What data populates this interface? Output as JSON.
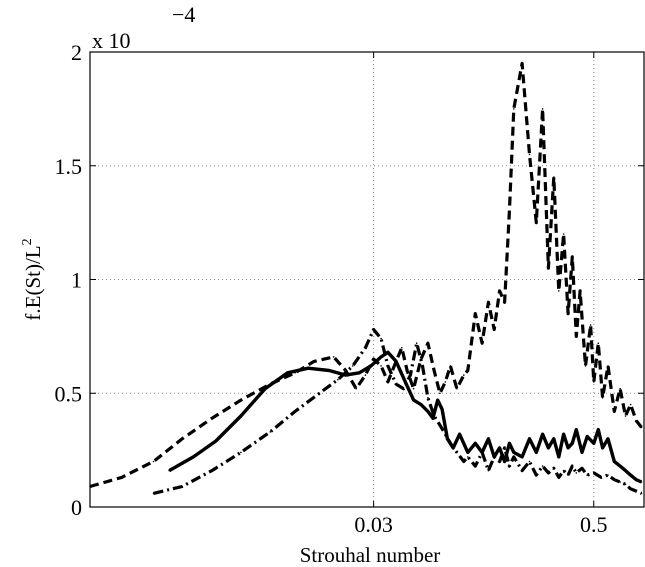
{
  "chart_data": {
    "type": "line",
    "xlabel": "Strouhal number",
    "ylabel_main": "f.E(St)/L",
    "ylabel_sup": "2",
    "y_multiplier_prefix": "x 10",
    "y_multiplier_exp": "−4",
    "xscale": "log",
    "xlim": [
      0.0008,
      0.95
    ],
    "ylim": [
      0,
      2
    ],
    "grid": true,
    "xticks": [
      {
        "value": 0.03,
        "label": "0.03"
      },
      {
        "value": 0.5,
        "label": "0.5"
      }
    ],
    "yticks": [
      {
        "value": 0,
        "label": "0"
      },
      {
        "value": 0.5,
        "label": "0.5"
      },
      {
        "value": 1,
        "label": "1"
      },
      {
        "value": 1.5,
        "label": "1.5"
      },
      {
        "value": 2,
        "label": "2"
      }
    ],
    "series": [
      {
        "style": "solid",
        "color": "#000000",
        "x": [
          0.0022,
          0.003,
          0.004,
          0.0055,
          0.0075,
          0.01,
          0.013,
          0.017,
          0.021,
          0.025,
          0.029,
          0.033,
          0.036,
          0.04,
          0.045,
          0.05,
          0.055,
          0.06,
          0.064,
          0.068,
          0.072,
          0.077,
          0.083,
          0.09,
          0.1,
          0.11,
          0.12,
          0.13,
          0.14,
          0.15,
          0.16,
          0.17,
          0.18,
          0.2,
          0.22,
          0.24,
          0.26,
          0.28,
          0.3,
          0.32,
          0.34,
          0.36,
          0.38,
          0.4,
          0.43,
          0.46,
          0.5,
          0.53,
          0.56,
          0.6,
          0.65,
          0.7,
          0.75,
          0.8,
          0.86,
          0.92
        ],
        "y": [
          0.16,
          0.22,
          0.29,
          0.4,
          0.52,
          0.59,
          0.61,
          0.6,
          0.58,
          0.59,
          0.62,
          0.66,
          0.68,
          0.64,
          0.55,
          0.47,
          0.45,
          0.42,
          0.39,
          0.47,
          0.43,
          0.3,
          0.26,
          0.32,
          0.24,
          0.28,
          0.24,
          0.3,
          0.22,
          0.26,
          0.2,
          0.28,
          0.24,
          0.22,
          0.3,
          0.24,
          0.32,
          0.26,
          0.3,
          0.22,
          0.32,
          0.26,
          0.28,
          0.34,
          0.24,
          0.31,
          0.28,
          0.34,
          0.26,
          0.3,
          0.2,
          0.18,
          0.16,
          0.14,
          0.12,
          0.11
        ]
      },
      {
        "style": "dashed",
        "color": "#000000",
        "x": [
          0.0008,
          0.0012,
          0.0018,
          0.0026,
          0.0038,
          0.0055,
          0.008,
          0.011,
          0.014,
          0.018,
          0.021,
          0.024,
          0.027,
          0.03,
          0.033,
          0.036,
          0.04,
          0.043,
          0.046,
          0.05,
          0.055,
          0.06,
          0.065,
          0.07,
          0.075,
          0.08,
          0.087,
          0.095,
          0.1,
          0.11,
          0.12,
          0.13,
          0.14,
          0.15,
          0.16,
          0.17,
          0.18,
          0.2,
          0.22,
          0.24,
          0.26,
          0.28,
          0.3,
          0.32,
          0.34,
          0.36,
          0.38,
          0.4,
          0.42,
          0.45,
          0.48,
          0.5,
          0.53,
          0.56,
          0.6,
          0.65,
          0.7,
          0.75,
          0.8,
          0.86,
          0.92
        ],
        "y": [
          0.09,
          0.13,
          0.2,
          0.3,
          0.39,
          0.47,
          0.54,
          0.59,
          0.64,
          0.66,
          0.6,
          0.52,
          0.58,
          0.65,
          0.62,
          0.55,
          0.64,
          0.7,
          0.6,
          0.52,
          0.65,
          0.72,
          0.6,
          0.5,
          0.55,
          0.62,
          0.52,
          0.58,
          0.6,
          0.85,
          0.72,
          0.9,
          0.78,
          0.95,
          0.9,
          1.3,
          1.75,
          1.95,
          1.55,
          1.25,
          1.75,
          1.05,
          1.45,
          0.95,
          1.2,
          0.85,
          1.1,
          0.75,
          0.95,
          0.62,
          0.8,
          0.55,
          0.72,
          0.48,
          0.62,
          0.42,
          0.52,
          0.4,
          0.45,
          0.38,
          0.35
        ]
      },
      {
        "style": "dash-dot",
        "color": "#000000",
        "x": [
          0.0018,
          0.0026,
          0.0038,
          0.0055,
          0.008,
          0.011,
          0.015,
          0.019,
          0.023,
          0.027,
          0.03,
          0.033,
          0.036,
          0.04,
          0.044,
          0.048,
          0.052,
          0.056,
          0.06,
          0.065,
          0.07,
          0.075,
          0.08,
          0.087,
          0.095,
          0.1,
          0.11,
          0.12,
          0.13,
          0.14,
          0.15,
          0.16,
          0.17,
          0.18,
          0.2,
          0.22,
          0.24,
          0.26,
          0.28,
          0.3,
          0.32,
          0.34,
          0.36,
          0.38,
          0.4,
          0.43,
          0.46,
          0.5,
          0.55,
          0.6,
          0.65,
          0.7,
          0.75,
          0.8,
          0.86,
          0.92
        ],
        "y": [
          0.06,
          0.09,
          0.16,
          0.24,
          0.33,
          0.42,
          0.5,
          0.56,
          0.62,
          0.7,
          0.78,
          0.74,
          0.62,
          0.54,
          0.52,
          0.58,
          0.72,
          0.62,
          0.48,
          0.4,
          0.36,
          0.32,
          0.28,
          0.24,
          0.2,
          0.22,
          0.18,
          0.24,
          0.16,
          0.22,
          0.2,
          0.26,
          0.18,
          0.22,
          0.16,
          0.2,
          0.14,
          0.18,
          0.15,
          0.17,
          0.13,
          0.16,
          0.14,
          0.18,
          0.15,
          0.17,
          0.14,
          0.15,
          0.13,
          0.14,
          0.12,
          0.11,
          0.1,
          0.08,
          0.07,
          0.06
        ]
      }
    ]
  }
}
